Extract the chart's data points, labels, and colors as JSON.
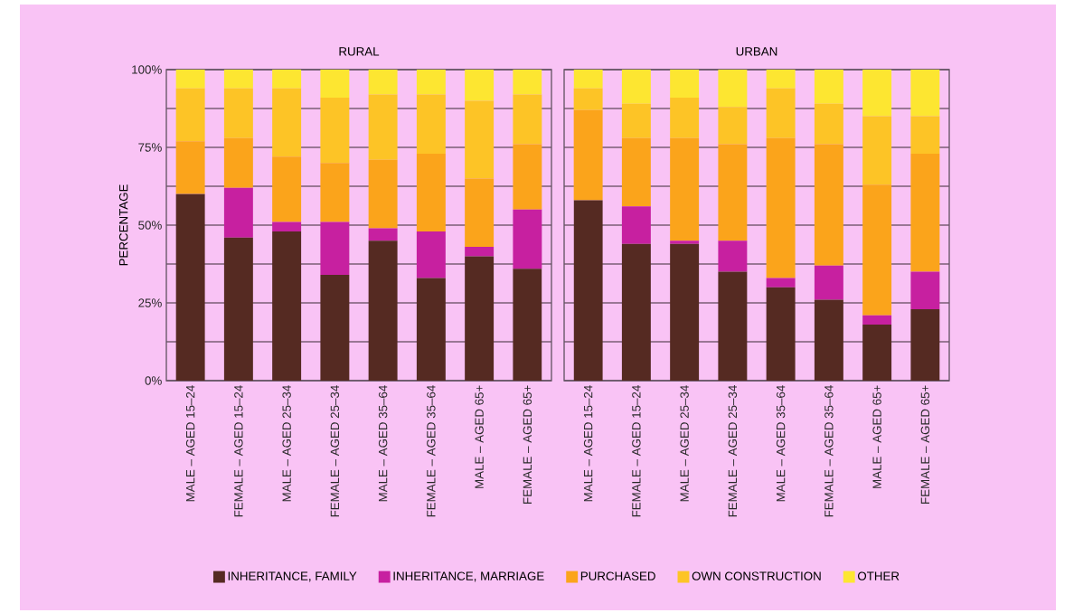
{
  "chart_data": [
    {
      "type": "bar",
      "stacked": true,
      "title": "RURAL",
      "ylabel": "PERCENTAGE",
      "categories": [
        "MALE – AGED 15–24",
        "FEMALE – AGED 15–24",
        "MALE – AGED 25–34",
        "FEMALE – AGED 25–34",
        "MALE – AGED 35–64",
        "FEMALE – AGED 35–64",
        "MALE – AGED 65+",
        "FEMALE – AGED 65+"
      ],
      "ylim": [
        0,
        100
      ],
      "yticks": [
        {
          "value": 0,
          "label": "0%"
        },
        {
          "value": 12.5,
          "label": null
        },
        {
          "value": 25,
          "label": "25%"
        },
        {
          "value": 37.5,
          "label": null
        },
        {
          "value": 50,
          "label": "50%"
        },
        {
          "value": 62.5,
          "label": null
        },
        {
          "value": 75,
          "label": "75%"
        },
        {
          "value": 87.5,
          "label": null
        },
        {
          "value": 100,
          "label": "100%"
        }
      ],
      "grid": "y",
      "legend": "bottom",
      "series": [
        {
          "name": "INHERITANCE, FAMILY",
          "color": "#552a22",
          "values": [
            60,
            46,
            48,
            34,
            45,
            33,
            40,
            36
          ]
        },
        {
          "name": "INHERITANCE, MARRIAGE",
          "color": "#c720a0",
          "values": [
            0,
            16,
            3,
            17,
            4,
            15,
            3,
            19
          ]
        },
        {
          "name": "PURCHASED",
          "color": "#fba41b",
          "values": [
            17,
            16,
            21,
            19,
            22,
            25,
            22,
            21
          ]
        },
        {
          "name": "OWN CONSTRUCTION",
          "color": "#fdc426",
          "values": [
            17,
            16,
            22,
            21,
            21,
            19,
            25,
            16
          ]
        },
        {
          "name": "OTHER",
          "color": "#fde631",
          "values": [
            6,
            6,
            6,
            9,
            8,
            8,
            10,
            8
          ]
        }
      ]
    },
    {
      "type": "bar",
      "stacked": true,
      "title": "URBAN",
      "categories": [
        "MALE – AGED 15–24",
        "FEMALE – AGED 15–24",
        "MALE – AGED 25–34",
        "FEMALE – AGED 25–34",
        "MALE – AGED 35–64",
        "FEMALE – AGED 35–64",
        "MALE – AGED 65+",
        "FEMALE – AGED 65+"
      ],
      "ylim": [
        0,
        100
      ],
      "yticks": [
        {
          "value": 0,
          "label": null
        },
        {
          "value": 12.5,
          "label": null
        },
        {
          "value": 25,
          "label": null
        },
        {
          "value": 37.5,
          "label": null
        },
        {
          "value": 50,
          "label": null
        },
        {
          "value": 62.5,
          "label": null
        },
        {
          "value": 75,
          "label": null
        },
        {
          "value": 87.5,
          "label": null
        },
        {
          "value": 100,
          "label": null
        }
      ],
      "grid": "y",
      "tick_labels": "x",
      "series": [
        {
          "color": "#552a22",
          "values": [
            58,
            44,
            44,
            35,
            30,
            26,
            18,
            23
          ]
        },
        {
          "color": "#c720a0",
          "values": [
            0,
            12,
            1,
            10,
            3,
            11,
            3,
            12
          ]
        },
        {
          "color": "#fba41b",
          "values": [
            29,
            22,
            33,
            31,
            45,
            39,
            42,
            38
          ]
        },
        {
          "color": "#fdc426",
          "values": [
            7,
            11,
            13,
            12,
            16,
            13,
            22,
            12
          ]
        },
        {
          "color": "#fde631",
          "values": [
            6,
            11,
            9,
            12,
            6,
            11,
            15,
            15
          ]
        }
      ]
    }
  ]
}
